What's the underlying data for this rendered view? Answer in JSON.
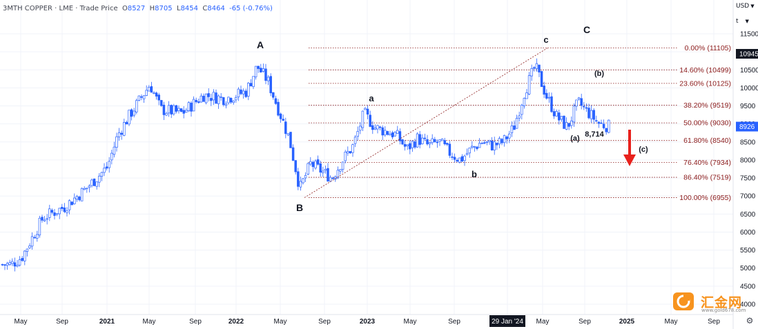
{
  "header": {
    "symbol": "3MTH COPPER",
    "exchange": "LME",
    "sep": "·",
    "price_type": "Trade Price",
    "o_label": "O",
    "o": "8527",
    "h_label": "H",
    "h": "8705",
    "l_label": "L",
    "l": "8454",
    "c_label": "C",
    "c": "8464",
    "change": "-65 (-0.76%)"
  },
  "axis": {
    "currency": "USD",
    "t_label": "t",
    "price_ticks": [
      "11500",
      "11000",
      "10500",
      "10000",
      "9500",
      "9000",
      "8500",
      "8000",
      "7500",
      "7000",
      "6500",
      "6000",
      "5500",
      "5000",
      "4500",
      "4000"
    ],
    "last_high_badge": "10945",
    "last_price_badge": "8926",
    "time_labels": [
      "May",
      "Sep",
      "2021",
      "May",
      "Sep",
      "2022",
      "May",
      "Sep",
      "2023",
      "May",
      "Sep",
      "29 Jan '24",
      "May",
      "Sep",
      "2025",
      "May",
      "Sep"
    ]
  },
  "fib_levels": [
    {
      "label": "0.00% (11105)",
      "price": 11105
    },
    {
      "label": "14.60% (10499)",
      "price": 10499
    },
    {
      "label": "23.60% (10125)",
      "price": 10125
    },
    {
      "label": "38.20% (9519)",
      "price": 9519
    },
    {
      "label": "50.00% (9030)",
      "price": 9030
    },
    {
      "label": "61.80% (8540)",
      "price": 8540
    },
    {
      "label": "76.40% (7934)",
      "price": 7934
    },
    {
      "label": "86.40% (7519)",
      "price": 7519
    },
    {
      "label": "100.00% (6955)",
      "price": 6955
    }
  ],
  "annotations": {
    "wave_A": "A",
    "wave_B": "B",
    "wave_C": "C",
    "wave_a": "a",
    "wave_b": "b",
    "wave_c": "c",
    "wave_a_paren": "(a)",
    "wave_b_paren": "(b)",
    "wave_c_paren": "(c)",
    "low_value": "8,714"
  },
  "watermark": {
    "name": "汇金网",
    "url": "www.gold678.com"
  },
  "colors": {
    "candle": "#2962ff",
    "fib": "#8b1a1a",
    "arrow": "#e8211c",
    "grid": "#f0f3fa"
  },
  "chart_data": {
    "type": "candlestick",
    "title": "3MTH COPPER · LME · Trade Price",
    "ylim": [
      4000,
      11500
    ],
    "y_axis_position": "right",
    "grid": true,
    "close_path": [
      [
        "2020-04",
        5100
      ],
      [
        "2020-05",
        5300
      ],
      [
        "2020-07",
        6400
      ],
      [
        "2020-09",
        6700
      ],
      [
        "2020-11",
        7200
      ],
      [
        "2021-01",
        7800
      ],
      [
        "2021-02",
        8700
      ],
      [
        "2021-03",
        9200
      ],
      [
        "2021-05",
        10100
      ],
      [
        "2021-06",
        9400
      ],
      [
        "2021-08",
        9300
      ],
      [
        "2021-10",
        9800
      ],
      [
        "2021-12",
        9700
      ],
      [
        "2022-02",
        9900
      ],
      [
        "2022-03",
        10600
      ],
      [
        "2022-04",
        10200
      ],
      [
        "2022-05",
        9400
      ],
      [
        "2022-06",
        8600
      ],
      [
        "2022-07",
        7200
      ],
      [
        "2022-08",
        7900
      ],
      [
        "2022-09",
        7700
      ],
      [
        "2022-10",
        7500
      ],
      [
        "2022-11",
        8000
      ],
      [
        "2022-12",
        8400
      ],
      [
        "2023-01",
        9300
      ],
      [
        "2023-02",
        8900
      ],
      [
        "2023-03",
        8800
      ],
      [
        "2023-04",
        8700
      ],
      [
        "2023-05",
        8300
      ],
      [
        "2023-06",
        8600
      ],
      [
        "2023-07",
        8400
      ],
      [
        "2023-08",
        8500
      ],
      [
        "2023-09",
        8200
      ],
      [
        "2023-10",
        8000
      ],
      [
        "2023-11",
        8300
      ],
      [
        "2023-12",
        8500
      ],
      [
        "2024-01",
        8400
      ],
      [
        "2024-02",
        8500
      ],
      [
        "2024-03",
        8900
      ],
      [
        "2024-04",
        9900
      ],
      [
        "2024-05",
        10600
      ],
      [
        "2024-06",
        9800
      ],
      [
        "2024-07",
        9200
      ],
      [
        "2024-08",
        8900
      ],
      [
        "2024-09",
        9600
      ],
      [
        "2024-10",
        9300
      ],
      [
        "2024-11",
        9000
      ],
      [
        "2024-12",
        8926
      ]
    ],
    "projection": {
      "from": "2024-12",
      "direction": "down",
      "label": "(c)"
    }
  }
}
